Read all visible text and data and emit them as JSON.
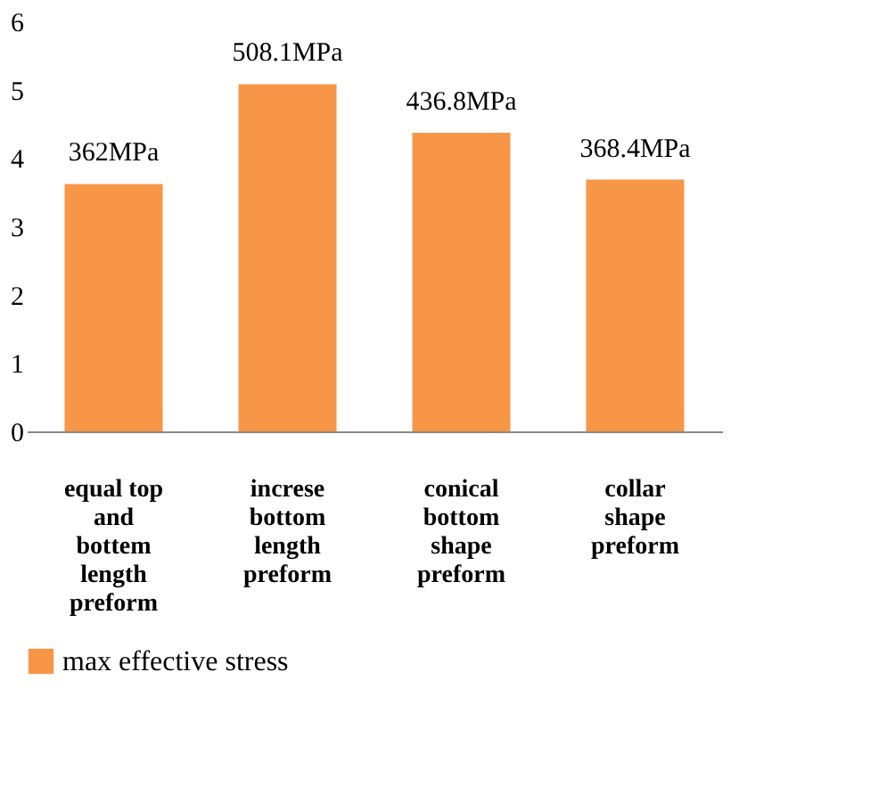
{
  "chart_data": {
    "type": "bar",
    "categories": [
      "equal top and bottem length preform",
      "increse bottom length preform",
      "conical bottom shape preform",
      "collar shape preform"
    ],
    "series": [
      {
        "name": "max effective stress",
        "color": "#f79646",
        "values": [
          3.62,
          5.081,
          4.368,
          3.684
        ]
      }
    ],
    "value_labels": [
      "362MPa",
      "508.1MPa",
      "436.8MPa",
      "368.4MPa"
    ],
    "ylim": [
      0,
      6
    ],
    "yticks": [
      0,
      1,
      2,
      3,
      4,
      5,
      6
    ],
    "grid": false,
    "legend": "bottom"
  }
}
